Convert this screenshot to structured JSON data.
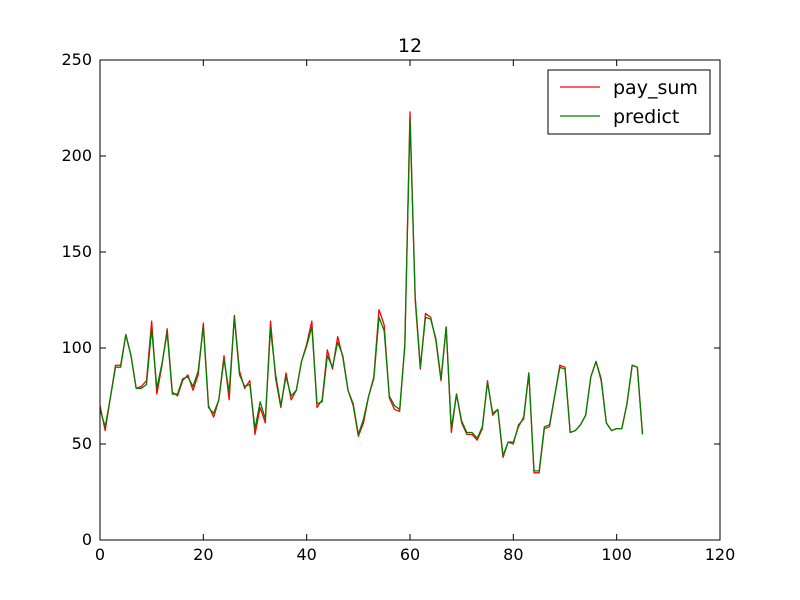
{
  "chart_data": {
    "type": "line",
    "title": "12",
    "xlabel": "",
    "ylabel": "",
    "xlim": [
      0,
      120
    ],
    "ylim": [
      0,
      250
    ],
    "xticks": [
      0,
      20,
      40,
      60,
      80,
      100,
      120
    ],
    "yticks": [
      0,
      50,
      100,
      150,
      200,
      250
    ],
    "grid": false,
    "legend": "top-right",
    "series": [
      {
        "name": "pay_sum",
        "color": "#ff0000",
        "x": [
          0,
          1,
          2,
          3,
          4,
          5,
          6,
          7,
          8,
          9,
          10,
          11,
          12,
          13,
          14,
          15,
          16,
          17,
          18,
          19,
          20,
          21,
          22,
          23,
          24,
          25,
          26,
          27,
          28,
          29,
          30,
          31,
          32,
          33,
          34,
          35,
          36,
          37,
          38,
          39,
          40,
          41,
          42,
          43,
          44,
          45,
          46,
          47,
          48,
          49,
          50,
          51,
          52,
          53,
          54,
          55,
          56,
          57,
          58,
          59,
          60,
          61,
          62,
          63,
          64,
          65,
          66,
          67,
          68,
          69,
          70,
          71,
          72,
          73,
          74,
          75,
          76,
          77,
          78,
          79,
          80,
          81,
          82,
          83,
          84,
          85,
          86,
          87,
          88,
          89,
          90,
          91,
          92,
          93,
          94,
          95,
          96,
          97,
          98,
          99,
          100,
          101,
          102,
          103,
          104,
          105
        ],
        "y": [
          70,
          57,
          74,
          91,
          91,
          107,
          96,
          79,
          80,
          83,
          114,
          76,
          91,
          110,
          77,
          75,
          83,
          86,
          78,
          86,
          113,
          70,
          64,
          73,
          96,
          73,
          117,
          88,
          79,
          83,
          55,
          69,
          61,
          114,
          84,
          69,
          87,
          73,
          78,
          93,
          102,
          114,
          69,
          73,
          99,
          89,
          106,
          95,
          78,
          70,
          54,
          61,
          75,
          85,
          120,
          112,
          74,
          68,
          67,
          102,
          223,
          125,
          89,
          118,
          116,
          104,
          83,
          111,
          56,
          76,
          61,
          55,
          55,
          52,
          58,
          83,
          65,
          68,
          43,
          51,
          50,
          60,
          63,
          87,
          35,
          35,
          58,
          59,
          75,
          91,
          90,
          56,
          57,
          60,
          65,
          85,
          93,
          83,
          61,
          57,
          58,
          58,
          71,
          91,
          90,
          55
        ]
      },
      {
        "name": "predict",
        "color": "#008000",
        "x": [
          0,
          1,
          2,
          3,
          4,
          5,
          6,
          7,
          8,
          9,
          10,
          11,
          12,
          13,
          14,
          15,
          16,
          17,
          18,
          19,
          20,
          21,
          22,
          23,
          24,
          25,
          26,
          27,
          28,
          29,
          30,
          31,
          32,
          33,
          34,
          35,
          36,
          37,
          38,
          39,
          40,
          41,
          42,
          43,
          44,
          45,
          46,
          47,
          48,
          49,
          50,
          51,
          52,
          53,
          54,
          55,
          56,
          57,
          58,
          59,
          60,
          61,
          62,
          63,
          64,
          65,
          66,
          67,
          68,
          69,
          70,
          71,
          72,
          73,
          74,
          75,
          76,
          77,
          78,
          79,
          80,
          81,
          82,
          83,
          84,
          85,
          86,
          87,
          88,
          89,
          90,
          91,
          92,
          93,
          94,
          95,
          96,
          97,
          98,
          99,
          100,
          101,
          102,
          103,
          104,
          105
        ],
        "y": [
          68,
          59,
          74,
          90,
          90,
          107,
          96,
          79,
          79,
          81,
          110,
          79,
          92,
          108,
          76,
          76,
          84,
          85,
          80,
          88,
          111,
          69,
          66,
          73,
          94,
          77,
          116,
          86,
          80,
          81,
          58,
          72,
          63,
          110,
          86,
          70,
          85,
          75,
          78,
          93,
          101,
          111,
          71,
          72,
          96,
          90,
          103,
          96,
          78,
          71,
          55,
          63,
          75,
          84,
          116,
          109,
          75,
          70,
          68,
          101,
          219,
          127,
          90,
          116,
          115,
          105,
          84,
          111,
          58,
          76,
          62,
          56,
          56,
          53,
          59,
          82,
          66,
          68,
          44,
          51,
          51,
          59,
          64,
          87,
          36,
          36,
          59,
          60,
          75,
          90,
          89,
          56,
          57,
          60,
          65,
          85,
          93,
          84,
          61,
          57,
          58,
          58,
          71,
          91,
          90,
          55
        ]
      }
    ]
  }
}
